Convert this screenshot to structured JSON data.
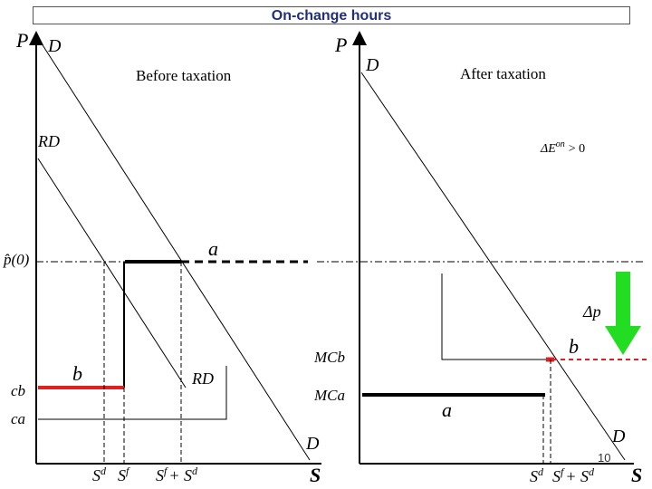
{
  "title": "On-change hours",
  "left_panel": {
    "caption": "Before taxation",
    "y_axis_label": "P",
    "x_axis_label": "S",
    "demand_label_top": "D",
    "demand_label_bottom": "D",
    "rd_label_top": "RD",
    "rd_label_mid": "RD",
    "price_label": "p̂(0)",
    "segment_a_label": "a",
    "segment_b_label": "b",
    "cb_label": "cb",
    "ca_label": "ca",
    "x_tick_1": "S",
    "x_tick_1_sup": "d",
    "x_tick_2": "S",
    "x_tick_2_sup": "f",
    "x_tick_3": "S",
    "x_tick_3_sup": "f",
    "x_tick_3_plus": "+ S",
    "x_tick_3_sup2": "d"
  },
  "right_panel": {
    "caption": "After taxation",
    "y_axis_label": "P",
    "x_axis_label": "S",
    "demand_label_top": "D",
    "demand_label_bottom": "D",
    "delta_e": "ΔE",
    "delta_e_sup": "on",
    "delta_e_rel": "> 0",
    "delta_p": "Δp",
    "mcb_label": "MCb",
    "mca_label": "MCa",
    "segment_a_label": "a",
    "segment_b_label": "b",
    "x_tick_1": "S",
    "x_tick_1_sup": "d",
    "x_tick_2": "S",
    "x_tick_2_sup": "f",
    "x_tick_2_plus": "+ S",
    "x_tick_2_sup2": "d"
  },
  "page_number": "10",
  "colors": {
    "title": "#1f2f7a",
    "red_segment": "#e02020",
    "green_arrow": "#22dd22",
    "axis": "#000000"
  }
}
